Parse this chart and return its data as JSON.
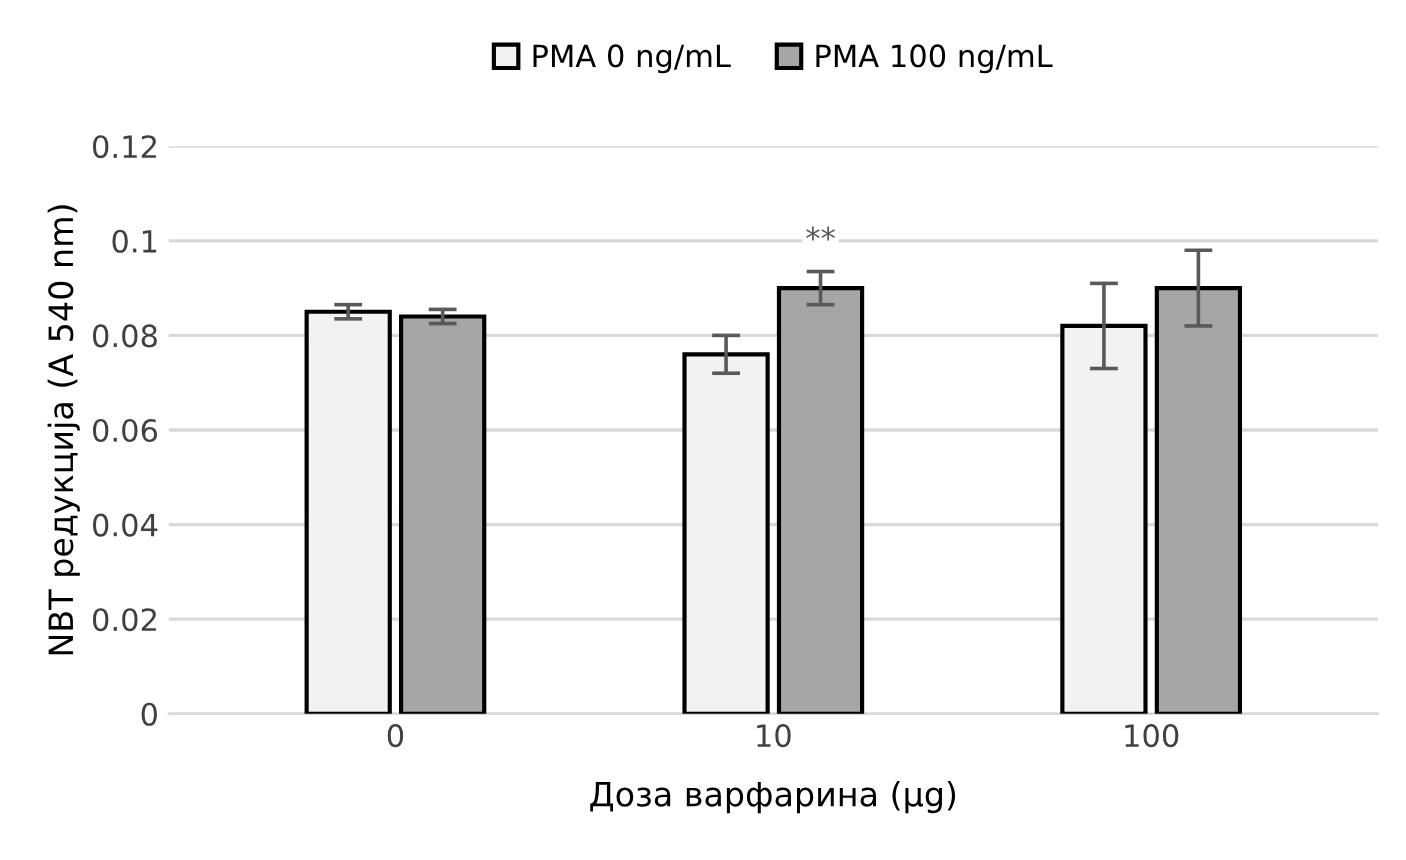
{
  "chart_data": {
    "type": "bar",
    "xlabel": "Доза варфарина (µg)",
    "ylabel": "NBT редукција (A 540 nm)",
    "categories": [
      "0",
      "10",
      "100"
    ],
    "series": [
      {
        "name": "PMA 0 ng/mL",
        "color": "#f2f2f2",
        "values": [
          0.085,
          0.076,
          0.082
        ],
        "errors": [
          0.0015,
          0.004,
          0.009
        ]
      },
      {
        "name": "PMA 100 ng/mL",
        "color": "#a6a6a6",
        "values": [
          0.084,
          0.09,
          0.09
        ],
        "errors": [
          0.0015,
          0.0035,
          0.008
        ]
      }
    ],
    "ylim": [
      0,
      0.12
    ],
    "yticks": [
      {
        "value": 0,
        "label": "0"
      },
      0.02,
      0.04,
      0.06,
      0.08,
      {
        "value": 0.1,
        "label": "0.1"
      },
      0.12
    ],
    "grid": "y",
    "legend": "top",
    "annotations": [
      "**"
    ]
  }
}
